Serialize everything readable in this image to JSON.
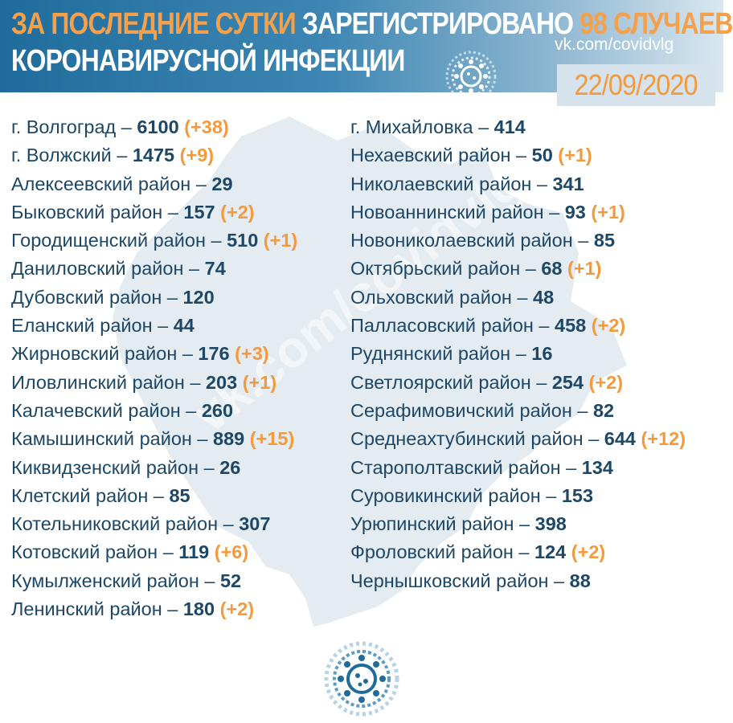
{
  "header": {
    "line1_part1": "За последние сутки",
    "line1_part2": "зарегистрировано",
    "line1_part3": "98 случаев",
    "line2": "коронавирусной инфекции",
    "site": "vk.com/covidvlg",
    "date": "22/09/2020",
    "watermark": "vk.com/covidvlg"
  },
  "colors": {
    "header_bg": "#2f7aa9",
    "accent_orange": "#f29a3d",
    "text_dark_blue": "#1d4766",
    "map_fill": "#e4ebf1"
  },
  "icons": {
    "header": "coronavirus-icon",
    "bottom": "coronavirus-icon"
  },
  "left_column": [
    {
      "name": "г. Волгоград – ",
      "count": "6100",
      "increase": " (+38)"
    },
    {
      "name": "г. Волжский – ",
      "count": "1475",
      "increase": " (+9)"
    },
    {
      "name": "Алексеевский район – ",
      "count": "29",
      "increase": ""
    },
    {
      "name": "Быковский район – ",
      "count": "157",
      "increase": " (+2)"
    },
    {
      "name": "Городищенский район – ",
      "count": "510",
      "increase": " (+1)"
    },
    {
      "name": "Даниловский район – ",
      "count": "74",
      "increase": ""
    },
    {
      "name": "Дубовский район – ",
      "count": "120",
      "increase": ""
    },
    {
      "name": "Еланский район – ",
      "count": "44",
      "increase": ""
    },
    {
      "name": "Жирновский район – ",
      "count": "176",
      "increase": " (+3)"
    },
    {
      "name": "Иловлинский район – ",
      "count": "203",
      "increase": " (+1)"
    },
    {
      "name": "Калачевский район – ",
      "count": "260",
      "increase": ""
    },
    {
      "name": "Камышинский район – ",
      "count": "889",
      "increase": " (+15)"
    },
    {
      "name": "Киквидзенский район – ",
      "count": "26",
      "increase": ""
    },
    {
      "name": "Клетский район – ",
      "count": "85",
      "increase": ""
    },
    {
      "name": "Котельниковский район – ",
      "count": "307",
      "increase": ""
    },
    {
      "name": "Котовский район – ",
      "count": "119",
      "increase": " (+6)"
    },
    {
      "name": "Кумылженский район – ",
      "count": "52",
      "increase": ""
    },
    {
      "name": "Ленинский район – ",
      "count": "180",
      "increase": " (+2)"
    }
  ],
  "right_column": [
    {
      "name": "г. Михайловка – ",
      "count": "414",
      "increase": ""
    },
    {
      "name": "Нехаевский район – ",
      "count": "50",
      "increase": " (+1)"
    },
    {
      "name": "Николаевский район – ",
      "count": "341",
      "increase": ""
    },
    {
      "name": "Новоаннинский район – ",
      "count": "93",
      "increase": " (+1)"
    },
    {
      "name": "Новониколаевский район – ",
      "count": "85",
      "increase": ""
    },
    {
      "name": "Октябрьский район – ",
      "count": "68",
      "increase": " (+1)"
    },
    {
      "name": "Ольховский район – ",
      "count": "48",
      "increase": ""
    },
    {
      "name": "Палласовский район – ",
      "count": "458",
      "increase": " (+2)"
    },
    {
      "name": "Руднянский район – ",
      "count": "16",
      "increase": ""
    },
    {
      "name": "Светлоярский район – ",
      "count": "254",
      "increase": " (+2)"
    },
    {
      "name": "Серафимовичский район – ",
      "count": "82",
      "increase": ""
    },
    {
      "name": "Среднеахтубинский район – ",
      "count": "644",
      "increase": " (+12)"
    },
    {
      "name": "Старополтавский район – ",
      "count": "134",
      "increase": ""
    },
    {
      "name": "Суровикинский район – ",
      "count": "153",
      "increase": ""
    },
    {
      "name": "Урюпинский район – ",
      "count": "398",
      "increase": ""
    },
    {
      "name": "Фроловский район  – ",
      "count": "124",
      "increase": " (+2)"
    },
    {
      "name": "Чернышковский район – ",
      "count": "88",
      "increase": ""
    }
  ]
}
